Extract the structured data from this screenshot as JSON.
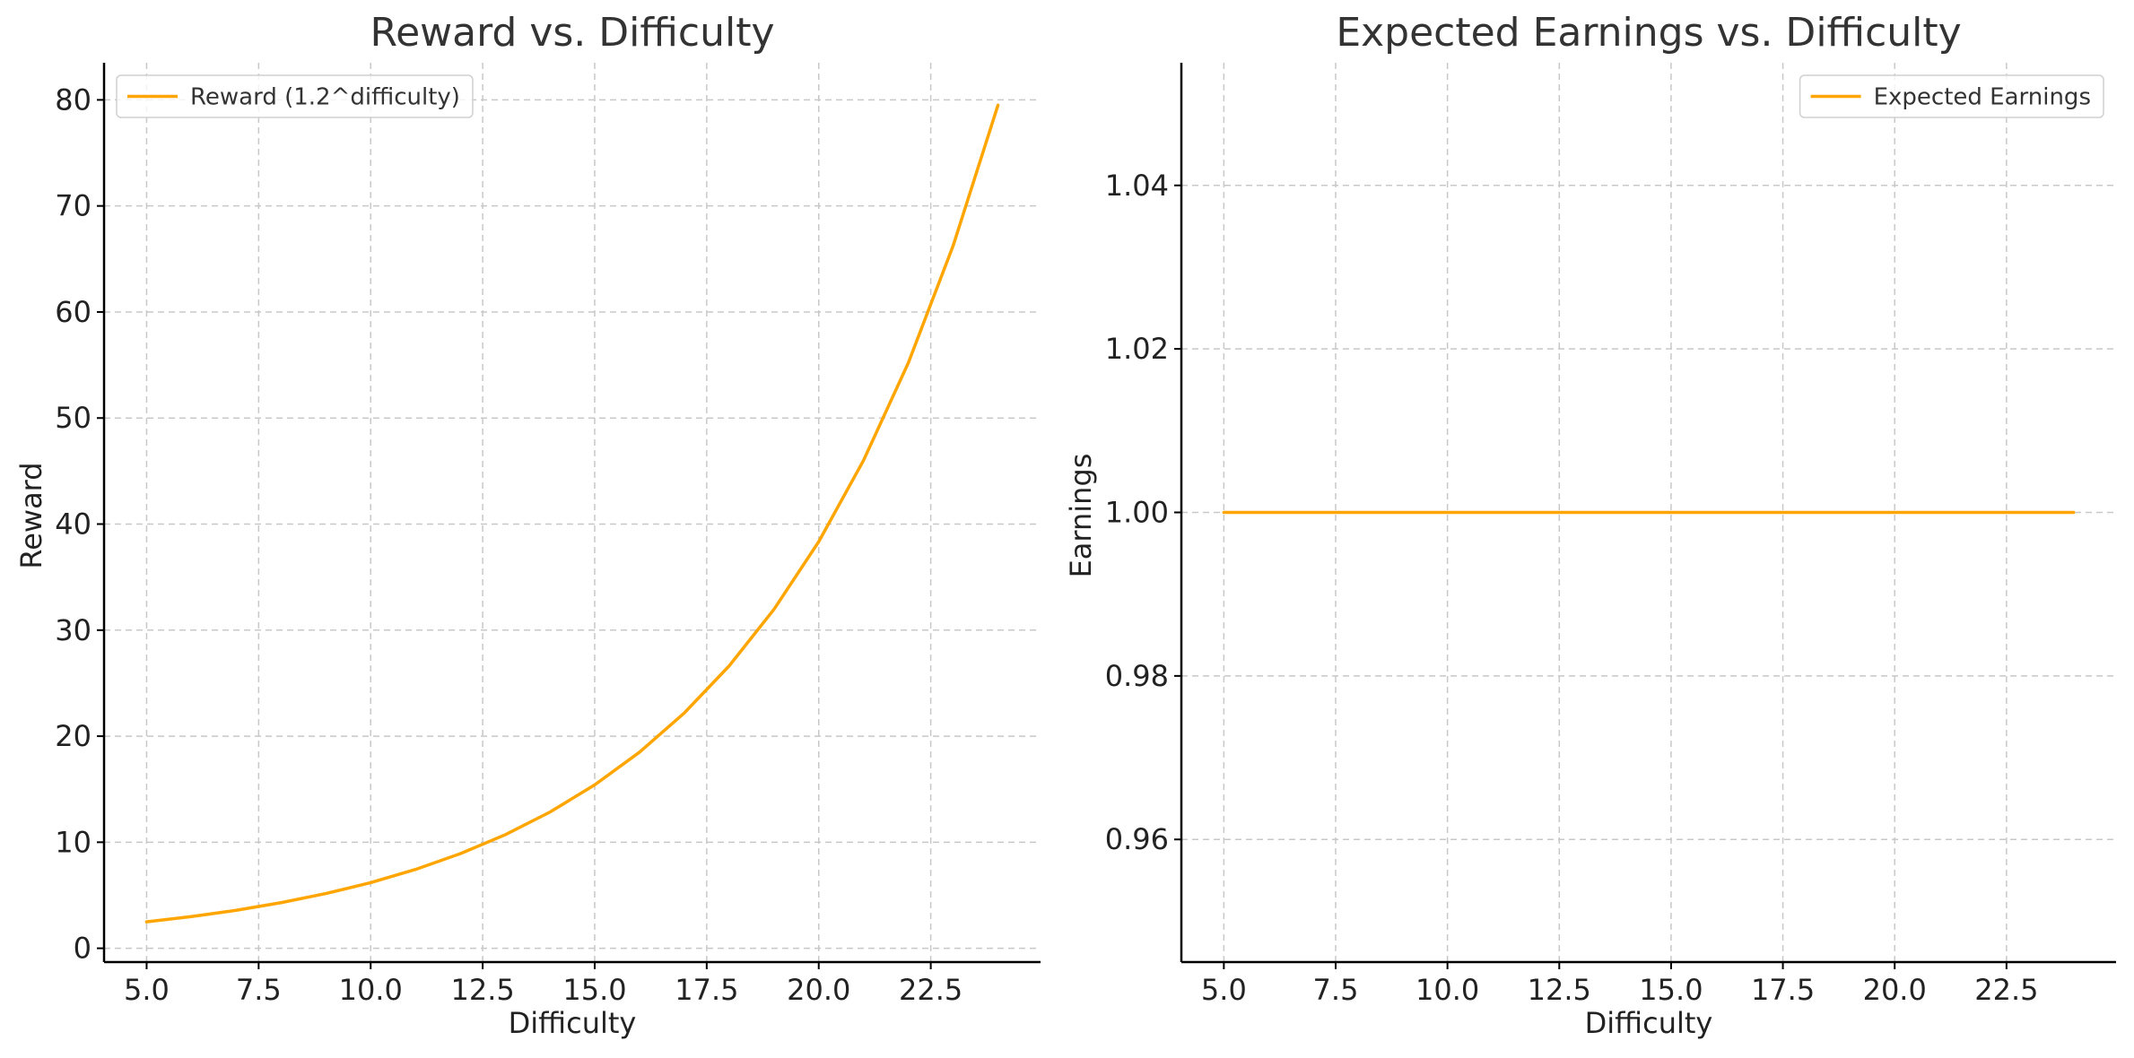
{
  "chart_data": [
    {
      "type": "line",
      "title": "Reward vs. Difficulty",
      "xlabel": "Difficulty",
      "ylabel": "Reward",
      "xlim": [
        4.05,
        24.95
      ],
      "ylim": [
        -1.3,
        83.5
      ],
      "xticks": [
        5.0,
        7.5,
        10.0,
        12.5,
        15.0,
        17.5,
        20.0,
        22.5
      ],
      "xtick_labels": [
        "5.0",
        "7.5",
        "10.0",
        "12.5",
        "15.0",
        "17.5",
        "20.0",
        "22.5"
      ],
      "yticks": [
        0,
        10,
        20,
        30,
        40,
        50,
        60,
        70,
        80
      ],
      "ytick_labels": [
        "0",
        "10",
        "20",
        "30",
        "40",
        "50",
        "60",
        "70",
        "80"
      ],
      "grid": true,
      "legend_position": "upper-left",
      "color": "#FFA500",
      "series": [
        {
          "name": "Reward (1.2^difficulty)",
          "x": [
            5,
            6,
            7,
            8,
            9,
            10,
            11,
            12,
            13,
            14,
            15,
            16,
            17,
            18,
            19,
            20,
            21,
            22,
            23,
            24
          ],
          "values": [
            2.49,
            2.99,
            3.58,
            4.3,
            5.16,
            6.19,
            7.43,
            8.92,
            10.7,
            12.84,
            15.41,
            18.49,
            22.19,
            26.62,
            31.95,
            38.34,
            46.01,
            55.21,
            66.25,
            79.5
          ]
        }
      ]
    },
    {
      "type": "line",
      "title": "Expected Earnings vs. Difficulty",
      "xlabel": "Difficulty",
      "ylabel": "Earnings",
      "xlim": [
        4.05,
        24.95
      ],
      "ylim": [
        0.945,
        1.055
      ],
      "xticks": [
        5.0,
        7.5,
        10.0,
        12.5,
        15.0,
        17.5,
        20.0,
        22.5
      ],
      "xtick_labels": [
        "5.0",
        "7.5",
        "10.0",
        "12.5",
        "15.0",
        "17.5",
        "20.0",
        "22.5"
      ],
      "yticks": [
        0.96,
        0.98,
        1.0,
        1.02,
        1.04
      ],
      "ytick_labels": [
        "0.96",
        "0.98",
        "1.00",
        "1.02",
        "1.04"
      ],
      "grid": true,
      "legend_position": "upper-right",
      "color": "#FFA500",
      "series": [
        {
          "name": "Expected Earnings",
          "x": [
            5,
            6,
            7,
            8,
            9,
            10,
            11,
            12,
            13,
            14,
            15,
            16,
            17,
            18,
            19,
            20,
            21,
            22,
            23,
            24
          ],
          "values": [
            1.0,
            1.0,
            1.0,
            1.0,
            1.0,
            1.0,
            1.0,
            1.0,
            1.0,
            1.0,
            1.0,
            1.0,
            1.0,
            1.0,
            1.0,
            1.0,
            1.0,
            1.0,
            1.0,
            1.0
          ]
        }
      ]
    }
  ]
}
